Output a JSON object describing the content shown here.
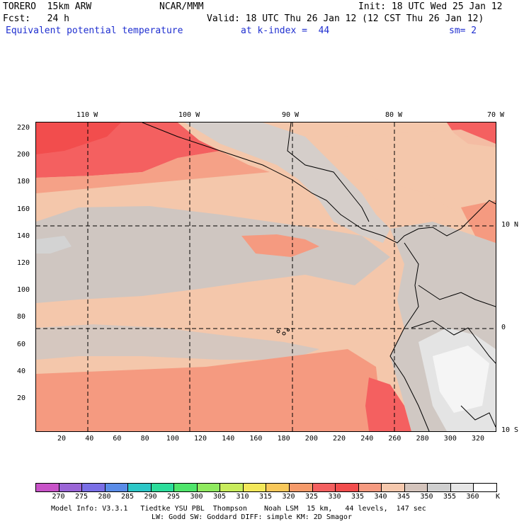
{
  "header": {
    "model": "TORERO  15km ARW",
    "agency": "NCAR/MMM",
    "init": "Init: 18 UTC Wed 25 Jan 12",
    "fcst": "Fcst:   24 h",
    "valid": "Valid: 18 UTC Thu 26 Jan 12 (12 CST Thu 26 Jan 12)",
    "field": "Equivalent potential temperature",
    "kindex": "at k-index =  44",
    "smooth": "sm= 2"
  },
  "map": {
    "top_lon_labels": [
      "110 W",
      "100 W",
      "90 W",
      "80 W",
      "70 W"
    ],
    "right_lat_labels": [
      "10 N",
      "0",
      "10 S"
    ],
    "x_ticks": [
      "20",
      "40",
      "60",
      "80",
      "100",
      "120",
      "140",
      "160",
      "180",
      "200",
      "220",
      "240",
      "260",
      "280",
      "300",
      "320"
    ],
    "y_ticks": [
      "220",
      "200",
      "180",
      "160",
      "140",
      "120",
      "100",
      "80",
      "60",
      "40",
      "20"
    ]
  },
  "colorbar": {
    "levels": [
      "270",
      "275",
      "280",
      "285",
      "290",
      "295",
      "300",
      "305",
      "310",
      "315",
      "320",
      "325",
      "330",
      "335",
      "340",
      "345",
      "350",
      "355",
      "360"
    ],
    "unit": "K",
    "colors": [
      "#c853c8",
      "#9a65d6",
      "#7a6fe6",
      "#5a8ce8",
      "#2cc7c7",
      "#2cdd9b",
      "#4fe56b",
      "#8fea5f",
      "#c8ec5c",
      "#f3e85a",
      "#f8c85a",
      "#f59a6a",
      "#f46060",
      "#f24d4d",
      "#f59a80",
      "#f5c8ad",
      "#d4c4bc",
      "#cfcfcf",
      "#e6e6e6",
      "#ffffff"
    ]
  },
  "footer": {
    "line1": "Model Info: V3.3.1   Tiedtke YSU PBL  Thompson    Noah LSM  15 km,   44 levels,  147 sec",
    "line2": "LW: Godd SW: Goddard DIFF: simple KM: 2D Smagor"
  }
}
